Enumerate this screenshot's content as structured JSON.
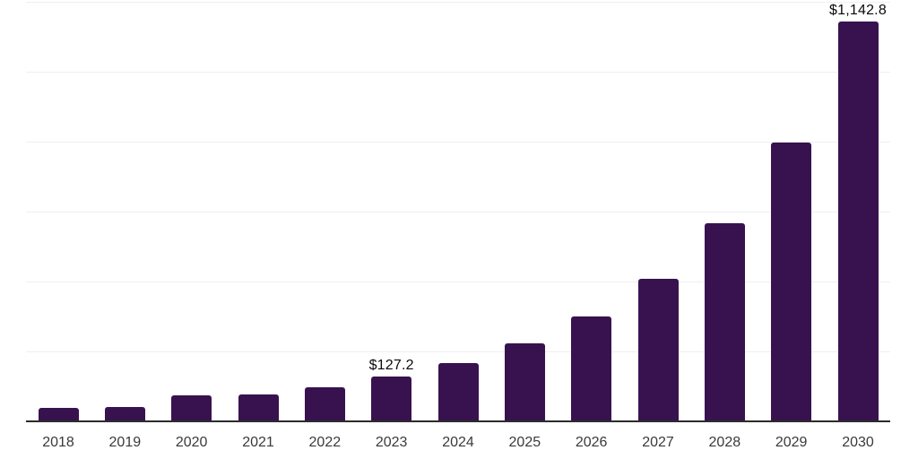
{
  "chart": {
    "background_color": "#ffffff",
    "bar_color": "#38124F",
    "gridline_color": "#efefef",
    "axis_line_color": "#2b2b2b",
    "tick_label_color": "#3a3a3a",
    "data_label_color": "#0a0a0a"
  },
  "chart_data": {
    "type": "bar",
    "title": "",
    "xlabel": "",
    "ylabel": "",
    "categories": [
      "2018",
      "2019",
      "2020",
      "2021",
      "2022",
      "2023",
      "2024",
      "2025",
      "2026",
      "2027",
      "2028",
      "2029",
      "2030"
    ],
    "values": [
      39,
      41,
      75,
      77,
      97,
      127.2,
      166,
      222,
      299,
      407,
      566,
      797,
      1142.8
    ],
    "point_labels": [
      {
        "index": 5,
        "text": "$127.2"
      },
      {
        "index": 12,
        "text": "$1,142.8"
      }
    ],
    "ylim": [
      0,
      1200
    ],
    "gridline_interval": 200,
    "grid": true,
    "legend": false,
    "y_tick_labels_visible": false
  }
}
